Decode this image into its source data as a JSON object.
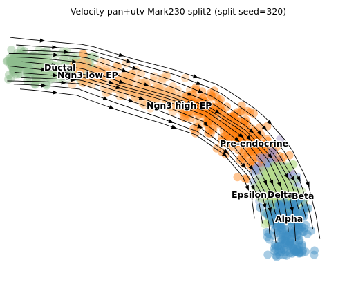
{
  "chart_data": {
    "type": "scatter",
    "title": "Velocity pan+utv Mark230 split2 (split seed=320)",
    "xlabel": "",
    "ylabel": "",
    "axes": "off",
    "grid": false,
    "overlay": "velocity streamlines (black arrows)",
    "cell_types": [
      {
        "name": "Ductal",
        "color": "#8fbc8f"
      },
      {
        "name": "Ngn3 low EP",
        "color": "#a9cfa0"
      },
      {
        "name": "Ngn3 high EP",
        "color": "#fdb46b"
      },
      {
        "name": "Pre-endocrine",
        "color": "#ff7f0e"
      },
      {
        "name": "Epsilon",
        "color": "#9b8fc4"
      },
      {
        "name": "Delta",
        "color": "#8aa6d8"
      },
      {
        "name": "Beta",
        "color": "#b5dc8c"
      },
      {
        "name": "Alpha",
        "color": "#3f8fc4"
      }
    ],
    "labels": [
      {
        "text": "Ductal"
      },
      {
        "text": "Ngn3 low EP"
      },
      {
        "text": "Ngn3 high EP"
      },
      {
        "text": "Pre-endocrine"
      },
      {
        "text": "Epsilon"
      },
      {
        "text": "Delta"
      },
      {
        "text": "Beta"
      },
      {
        "text": "Alpha"
      }
    ]
  }
}
